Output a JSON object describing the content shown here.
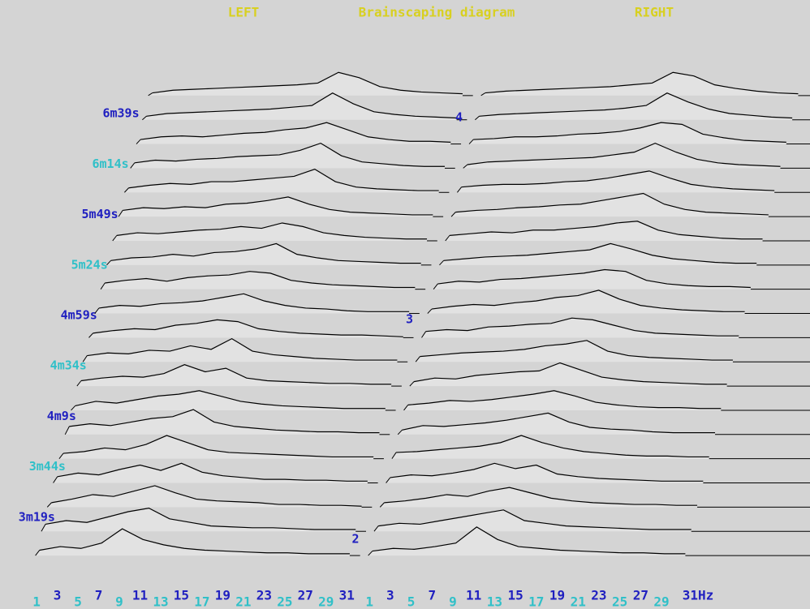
{
  "chart_data": {
    "type": "waterfall",
    "title": "Brainscaping diagram",
    "background": "#d4d4d4",
    "title_color": "#d8d020",
    "line_color": "#000000",
    "fill_color": "#e2e2e2",
    "label_colors": [
      "#2020c0",
      "#30c0c8"
    ],
    "ylim": [
      174,
      420
    ],
    "yticks": [
      {
        "value": 199,
        "label": "3m19s"
      },
      {
        "value": 224,
        "label": "3m44s"
      },
      {
        "value": 249,
        "label": "4m9s"
      },
      {
        "value": 274,
        "label": "4m34s"
      },
      {
        "value": 299,
        "label": "4m59s"
      },
      {
        "value": 324,
        "label": "5m24s"
      },
      {
        "value": 349,
        "label": "5m49s"
      },
      {
        "value": 374,
        "label": "6m14s"
      },
      {
        "value": 399,
        "label": "6m39s"
      }
    ],
    "annotations": [
      {
        "text": "2",
        "y": 188
      },
      {
        "text": "3",
        "y": 297
      },
      {
        "text": "4",
        "y": 397
      }
    ],
    "panels": [
      {
        "name": "LEFT",
        "xlim": [
          0.6,
          32
        ],
        "x": [
          1,
          3,
          5,
          7,
          9,
          11,
          13,
          15,
          17,
          19,
          21,
          23,
          25,
          27,
          29,
          31
        ],
        "xticks": [
          1,
          3,
          5,
          7,
          9,
          11,
          13,
          15,
          17,
          19,
          21,
          23,
          25,
          27,
          29,
          31
        ],
        "series": [
          {
            "time": 180,
            "values": [
              6,
              10,
              8,
              14,
              30,
              18,
              12,
              8,
              6,
              5,
              4,
              3,
              3,
              2,
              2,
              2
            ]
          },
          {
            "time": 192,
            "values": [
              8,
              12,
              10,
              16,
              22,
              26,
              14,
              10,
              6,
              5,
              4,
              4,
              3,
              2,
              2,
              2
            ]
          },
          {
            "time": 204,
            "values": [
              5,
              9,
              14,
              12,
              18,
              24,
              16,
              9,
              7,
              6,
              5,
              3,
              3,
              2,
              2,
              1
            ]
          },
          {
            "time": 216,
            "values": [
              7,
              11,
              9,
              15,
              20,
              14,
              22,
              12,
              8,
              6,
              4,
              4,
              3,
              3,
              2,
              2
            ]
          },
          {
            "time": 228,
            "values": [
              6,
              8,
              12,
              10,
              16,
              26,
              18,
              10,
              7,
              6,
              5,
              4,
              3,
              2,
              2,
              2
            ]
          },
          {
            "time": 240,
            "values": [
              9,
              12,
              10,
              14,
              18,
              20,
              28,
              14,
              9,
              7,
              5,
              4,
              3,
              3,
              2,
              2
            ]
          },
          {
            "time": 252,
            "values": [
              5,
              10,
              8,
              12,
              16,
              18,
              22,
              16,
              10,
              7,
              5,
              4,
              3,
              2,
              2,
              2
            ]
          },
          {
            "time": 264,
            "values": [
              6,
              9,
              11,
              10,
              14,
              24,
              16,
              20,
              9,
              6,
              5,
              4,
              3,
              3,
              2,
              2
            ]
          },
          {
            "time": 276,
            "values": [
              7,
              10,
              9,
              13,
              12,
              18,
              14,
              26,
              12,
              8,
              6,
              4,
              3,
              2,
              2,
              2
            ]
          },
          {
            "time": 288,
            "values": [
              5,
              8,
              10,
              9,
              14,
              16,
              20,
              18,
              10,
              7,
              5,
              4,
              3,
              3,
              2,
              1
            ]
          },
          {
            "time": 300,
            "values": [
              6,
              9,
              8,
              11,
              12,
              14,
              18,
              22,
              14,
              9,
              6,
              5,
              3,
              2,
              2,
              2
            ]
          },
          {
            "time": 312,
            "values": [
              7,
              10,
              12,
              9,
              13,
              15,
              16,
              20,
              18,
              10,
              7,
              5,
              4,
              3,
              2,
              2
            ]
          },
          {
            "time": 324,
            "values": [
              5,
              8,
              9,
              12,
              10,
              14,
              15,
              18,
              24,
              12,
              8,
              5,
              4,
              3,
              2,
              2
            ]
          },
          {
            "time": 336,
            "values": [
              6,
              9,
              8,
              10,
              12,
              13,
              16,
              14,
              20,
              16,
              9,
              6,
              4,
              3,
              2,
              2
            ]
          },
          {
            "time": 348,
            "values": [
              7,
              10,
              9,
              11,
              10,
              14,
              15,
              18,
              22,
              14,
              8,
              5,
              4,
              3,
              2,
              2
            ]
          },
          {
            "time": 360,
            "values": [
              5,
              8,
              10,
              9,
              12,
              12,
              14,
              16,
              18,
              26,
              12,
              6,
              4,
              3,
              2,
              2
            ]
          },
          {
            "time": 372,
            "values": [
              6,
              9,
              8,
              10,
              11,
              13,
              14,
              15,
              20,
              28,
              14,
              7,
              5,
              3,
              2,
              2
            ]
          },
          {
            "time": 384,
            "values": [
              5,
              8,
              9,
              8,
              10,
              12,
              13,
              16,
              18,
              24,
              16,
              8,
              5,
              3,
              3,
              2
            ]
          },
          {
            "time": 396,
            "values": [
              4,
              7,
              8,
              9,
              10,
              11,
              12,
              14,
              16,
              30,
              18,
              9,
              6,
              4,
              3,
              2
            ]
          },
          {
            "time": 408,
            "values": [
              3,
              6,
              7,
              8,
              9,
              10,
              11,
              12,
              14,
              26,
              20,
              10,
              6,
              4,
              3,
              2
            ]
          }
        ]
      },
      {
        "name": "RIGHT",
        "xlim": [
          0.6,
          43
        ],
        "x": [
          1,
          3,
          5,
          7,
          9,
          11,
          13,
          15,
          17,
          19,
          21,
          23,
          25,
          27,
          29,
          31
        ],
        "xticks": [
          1,
          3,
          5,
          7,
          9,
          11,
          13,
          15,
          17,
          19,
          21,
          23,
          25,
          27,
          29,
          {
            "value": 31,
            "label": "31Hz"
          }
        ],
        "series": [
          {
            "time": 180,
            "values": [
              5,
              8,
              7,
              10,
              14,
              32,
              18,
              10,
              8,
              6,
              5,
              4,
              3,
              3,
              2,
              2
            ]
          },
          {
            "time": 192,
            "values": [
              6,
              9,
              8,
              12,
              16,
              20,
              24,
              12,
              9,
              6,
              5,
              4,
              3,
              2,
              2,
              2
            ]
          },
          {
            "time": 204,
            "values": [
              5,
              7,
              10,
              14,
              12,
              18,
              22,
              16,
              10,
              7,
              5,
              4,
              3,
              3,
              2,
              2
            ]
          },
          {
            "time": 216,
            "values": [
              6,
              9,
              8,
              11,
              15,
              22,
              16,
              20,
              10,
              7,
              5,
              4,
              3,
              2,
              2,
              2
            ]
          },
          {
            "time": 228,
            "values": [
              7,
              8,
              10,
              12,
              14,
              18,
              26,
              18,
              12,
              8,
              6,
              4,
              3,
              3,
              2,
              2
            ]
          },
          {
            "time": 240,
            "values": [
              5,
              10,
              9,
              11,
              13,
              16,
              20,
              24,
              14,
              8,
              6,
              5,
              3,
              2,
              2,
              2
            ]
          },
          {
            "time": 252,
            "values": [
              6,
              8,
              11,
              10,
              12,
              15,
              18,
              22,
              16,
              9,
              6,
              4,
              3,
              3,
              2,
              2
            ]
          },
          {
            "time": 264,
            "values": [
              5,
              9,
              8,
              12,
              14,
              16,
              17,
              26,
              18,
              10,
              7,
              5,
              4,
              3,
              2,
              2
            ]
          },
          {
            "time": 276,
            "values": [
              6,
              8,
              10,
              11,
              12,
              14,
              18,
              20,
              24,
              12,
              7,
              5,
              4,
              3,
              2,
              2
            ]
          },
          {
            "time": 288,
            "values": [
              7,
              9,
              8,
              12,
              13,
              15,
              16,
              22,
              20,
              14,
              8,
              5,
              4,
              3,
              2,
              2
            ]
          },
          {
            "time": 300,
            "values": [
              5,
              8,
              10,
              9,
              12,
              14,
              18,
              20,
              26,
              16,
              9,
              6,
              4,
              3,
              2,
              2
            ]
          },
          {
            "time": 312,
            "values": [
              6,
              9,
              8,
              11,
              12,
              14,
              16,
              18,
              22,
              20,
              10,
              6,
              4,
              3,
              3,
              2
            ]
          },
          {
            "time": 324,
            "values": [
              5,
              7,
              9,
              10,
              11,
              13,
              15,
              17,
              24,
              18,
              11,
              7,
              5,
              3,
              2,
              2
            ]
          },
          {
            "time": 336,
            "values": [
              6,
              8,
              10,
              9,
              12,
              12,
              14,
              16,
              20,
              22,
              12,
              7,
              5,
              3,
              2,
              2
            ]
          },
          {
            "time": 348,
            "values": [
              5,
              7,
              8,
              10,
              11,
              13,
              14,
              18,
              22,
              26,
              14,
              8,
              5,
              4,
              3,
              2
            ]
          },
          {
            "time": 360,
            "values": [
              6,
              8,
              9,
              9,
              10,
              12,
              13,
              16,
              20,
              24,
              16,
              9,
              6,
              4,
              3,
              2
            ]
          },
          {
            "time": 372,
            "values": [
              4,
              7,
              8,
              9,
              10,
              11,
              12,
              15,
              18,
              28,
              18,
              10,
              6,
              4,
              3,
              2
            ]
          },
          {
            "time": 384,
            "values": [
              5,
              6,
              8,
              8,
              9,
              11,
              12,
              14,
              18,
              24,
              22,
              11,
              7,
              4,
              3,
              2
            ]
          },
          {
            "time": 396,
            "values": [
              4,
              6,
              7,
              8,
              9,
              10,
              11,
              13,
              16,
              30,
              20,
              12,
              7,
              5,
              3,
              2
            ]
          },
          {
            "time": 408,
            "values": [
              3,
              5,
              6,
              7,
              8,
              9,
              10,
              12,
              14,
              26,
              22,
              12,
              8,
              5,
              3,
              2
            ]
          }
        ]
      }
    ]
  }
}
